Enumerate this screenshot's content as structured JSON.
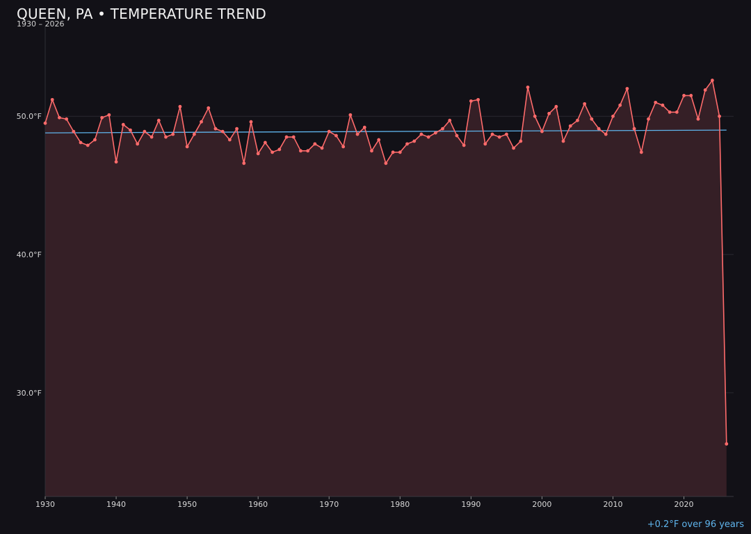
{
  "title": "QUEEN, PA • TEMPERATURE TREND",
  "subtitle": "1930 – 2026",
  "trend_note": "+0.2°F over 96 years",
  "colors": {
    "background": "#121117",
    "series_line": "#ff6b6b",
    "area_fill": "#351f26",
    "trend_line": "#5fb4ec",
    "grid": "#2a2930",
    "tick_text": "#d8d8d8"
  },
  "chart_data": {
    "type": "line",
    "title": "QUEEN, PA • TEMPERATURE TREND",
    "subtitle": "1930 – 2026",
    "xlabel": "",
    "ylabel": "",
    "xlim": [
      1930,
      2027
    ],
    "ylim": [
      22.5,
      56.5
    ],
    "x_ticks": [
      1930,
      1940,
      1950,
      1960,
      1970,
      1980,
      1990,
      2000,
      2010,
      2020
    ],
    "y_ticks": [
      30,
      40,
      50
    ],
    "y_tick_labels": [
      "30.0°F",
      "40.0°F",
      "50.0°F"
    ],
    "grid": "horizontal",
    "x": [
      1930,
      1931,
      1932,
      1933,
      1934,
      1935,
      1936,
      1937,
      1938,
      1939,
      1940,
      1941,
      1942,
      1943,
      1944,
      1945,
      1946,
      1947,
      1948,
      1949,
      1950,
      1951,
      1952,
      1953,
      1954,
      1955,
      1956,
      1957,
      1958,
      1959,
      1960,
      1961,
      1962,
      1963,
      1964,
      1965,
      1966,
      1967,
      1968,
      1969,
      1970,
      1971,
      1972,
      1973,
      1974,
      1975,
      1976,
      1977,
      1978,
      1979,
      1980,
      1981,
      1982,
      1983,
      1984,
      1985,
      1986,
      1987,
      1988,
      1989,
      1990,
      1991,
      1992,
      1993,
      1994,
      1995,
      1996,
      1997,
      1998,
      1999,
      2000,
      2001,
      2002,
      2003,
      2004,
      2005,
      2006,
      2007,
      2008,
      2009,
      2010,
      2011,
      2012,
      2013,
      2014,
      2015,
      2016,
      2017,
      2018,
      2019,
      2020,
      2021,
      2022,
      2023,
      2024,
      2025,
      2026
    ],
    "series": [
      {
        "values": [
          49.5,
          51.2,
          49.9,
          49.8,
          48.9,
          48.1,
          47.9,
          48.3,
          49.9,
          50.1,
          46.7,
          49.4,
          49.0,
          48.0,
          48.9,
          48.5,
          49.7,
          48.5,
          48.7,
          50.7,
          47.8,
          48.7,
          49.6,
          50.6,
          49.1,
          48.9,
          48.3,
          49.1,
          46.6,
          49.6,
          47.3,
          48.1,
          47.4,
          47.6,
          48.5,
          48.5,
          47.5,
          47.5,
          48.0,
          47.7,
          48.9,
          48.6,
          47.8,
          50.1,
          48.7,
          49.2,
          47.5,
          48.3,
          46.6,
          47.4,
          47.4,
          48.0,
          48.2,
          48.7,
          48.5,
          48.8,
          49.1,
          49.7,
          48.6,
          47.9,
          51.1,
          51.2,
          48.0,
          48.7,
          48.5,
          48.7,
          47.7,
          48.2,
          52.1,
          50.0,
          48.9,
          50.2,
          50.7,
          48.2,
          49.3,
          49.7,
          50.9,
          49.8,
          49.1,
          48.7,
          50.0,
          50.8,
          52.0,
          49.1,
          47.4,
          49.8,
          51.0,
          50.8,
          50.3,
          50.3,
          51.5,
          51.5,
          49.8,
          51.9,
          52.6,
          50.0,
          26.3
        ]
      }
    ],
    "trend": {
      "start": [
        1930,
        48.8
      ],
      "end": [
        2026,
        49.0
      ]
    }
  }
}
